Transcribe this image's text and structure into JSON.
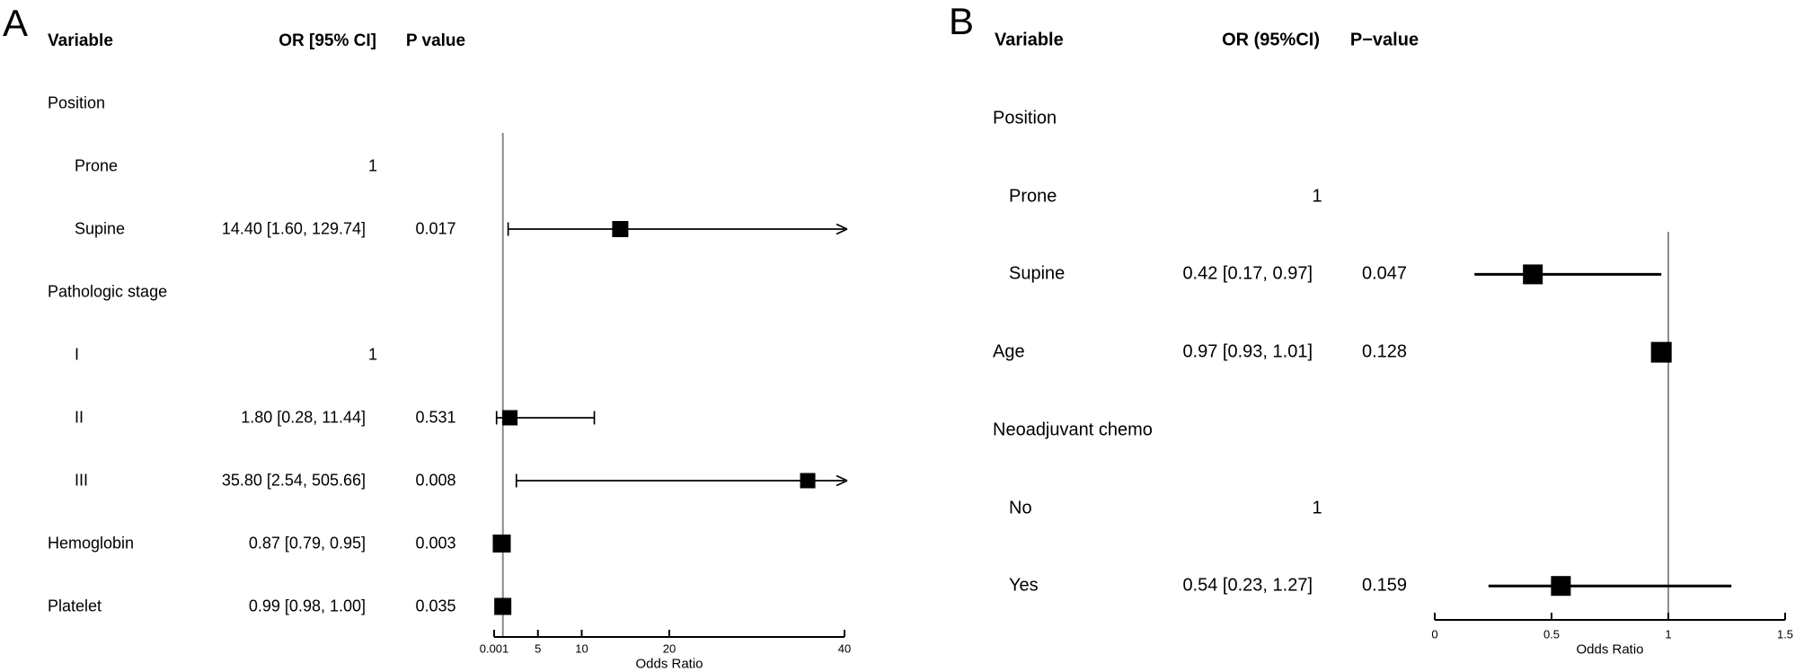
{
  "chart_data": [
    {
      "type": "forest",
      "panel": "A",
      "columns": {
        "variable": "Variable",
        "or": "OR [95% CI]",
        "p": "P value"
      },
      "xlabel": "Odds Ratio",
      "axis": {
        "scale": "linear",
        "range": [
          0,
          40
        ],
        "ref_line": 1,
        "ticks": [
          {
            "v": 0.001,
            "label": "0.001"
          },
          {
            "v": 5,
            "label": "5"
          },
          {
            "v": 10,
            "label": "10"
          },
          {
            "v": 20,
            "label": "20"
          },
          {
            "v": 40,
            "label": "40"
          }
        ]
      },
      "rows": [
        {
          "label": "Position",
          "group": true
        },
        {
          "label": "Prone",
          "indent": true,
          "or_text": "1",
          "ref": true
        },
        {
          "label": "Supine",
          "indent": true,
          "or_text": "14.40 [1.60, 129.74]",
          "p": "0.017",
          "est": 14.4,
          "lo": 1.6,
          "hi": 129.74,
          "size": 18
        },
        {
          "label": "Pathologic stage",
          "group": true
        },
        {
          "label": "I",
          "indent": true,
          "or_text": "1",
          "ref": true
        },
        {
          "label": "II",
          "indent": true,
          "or_text": "1.80 [0.28, 11.44]",
          "p": "0.531",
          "est": 1.8,
          "lo": 0.28,
          "hi": 11.44,
          "size": 17
        },
        {
          "label": "III",
          "indent": true,
          "or_text": "35.80 [2.54, 505.66]",
          "p": "0.008",
          "est": 35.8,
          "lo": 2.54,
          "hi": 505.66,
          "size": 17
        },
        {
          "label": "Hemoglobin",
          "or_text": "0.87 [0.79, 0.95]",
          "p": "0.003",
          "est": 0.87,
          "lo": 0.79,
          "hi": 0.95,
          "size": 20
        },
        {
          "label": "Platelet",
          "or_text": "0.99 [0.98, 1.00]",
          "p": "0.035",
          "est": 0.99,
          "lo": 0.98,
          "hi": 1.0,
          "size": 19
        }
      ]
    },
    {
      "type": "forest",
      "panel": "B",
      "columns": {
        "variable": "Variable",
        "or": "OR (95%CI)",
        "p": "P−value"
      },
      "xlabel": "Odds Ratio",
      "axis": {
        "scale": "linear",
        "range": [
          0,
          1.5
        ],
        "ref_line": 1,
        "ticks": [
          {
            "v": 0,
            "label": "0"
          },
          {
            "v": 0.5,
            "label": "0.5"
          },
          {
            "v": 1,
            "label": "1"
          },
          {
            "v": 1.5,
            "label": "1.5"
          }
        ]
      },
      "rows": [
        {
          "label": "Position",
          "group": true
        },
        {
          "label": "Prone",
          "indent": true,
          "or_text": "1",
          "ref": true
        },
        {
          "label": "Supine",
          "indent": true,
          "or_text": "0.42 [0.17, 0.97]",
          "p": "0.047",
          "est": 0.42,
          "lo": 0.17,
          "hi": 0.97,
          "size": 22
        },
        {
          "label": "Age",
          "or_text": "0.97 [0.93, 1.01]",
          "p": "0.128",
          "est": 0.97,
          "lo": 0.93,
          "hi": 1.01,
          "size": 23
        },
        {
          "label": "Neoadjuvant chemo",
          "group": true
        },
        {
          "label": "No",
          "indent": true,
          "or_text": "1",
          "ref": true
        },
        {
          "label": "Yes",
          "indent": true,
          "or_text": "0.54 [0.23, 1.27]",
          "p": "0.159",
          "est": 0.54,
          "lo": 0.23,
          "hi": 1.27,
          "size": 22
        }
      ]
    }
  ]
}
